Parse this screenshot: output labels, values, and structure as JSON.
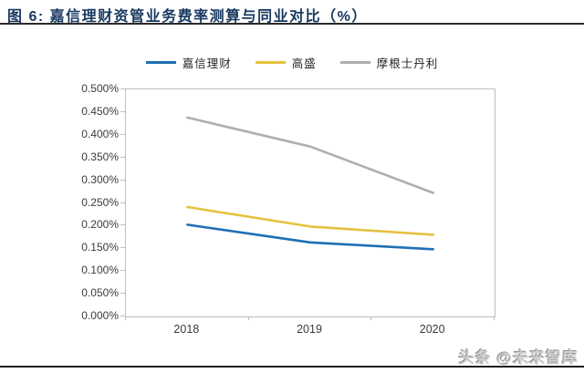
{
  "header": {
    "title": "图 6: 嘉信理财资管业务费率测算与同业对比（%）"
  },
  "chart_data": {
    "type": "line",
    "categories": [
      "2018",
      "2019",
      "2020"
    ],
    "series": [
      {
        "name": "嘉信理财",
        "color": "#1F6FB5",
        "values": [
          0.202,
          0.163,
          0.148
        ]
      },
      {
        "name": "高盛",
        "color": "#E4C23F",
        "values": [
          0.241,
          0.198,
          0.18
        ]
      },
      {
        "name": "摩根士丹利",
        "color": "#AFAFAF",
        "values": [
          0.438,
          0.374,
          0.272
        ]
      }
    ],
    "ylabel": "",
    "xlabel": "",
    "ylim": [
      0,
      0.5
    ],
    "ytick_labels": [
      "0.000%",
      "0.050%",
      "0.100%",
      "0.150%",
      "0.200%",
      "0.250%",
      "0.300%",
      "0.350%",
      "0.400%",
      "0.450%",
      "0.500%"
    ],
    "legend_position": "top",
    "grid": false
  },
  "watermark": {
    "text": "头条 @未来智库"
  }
}
